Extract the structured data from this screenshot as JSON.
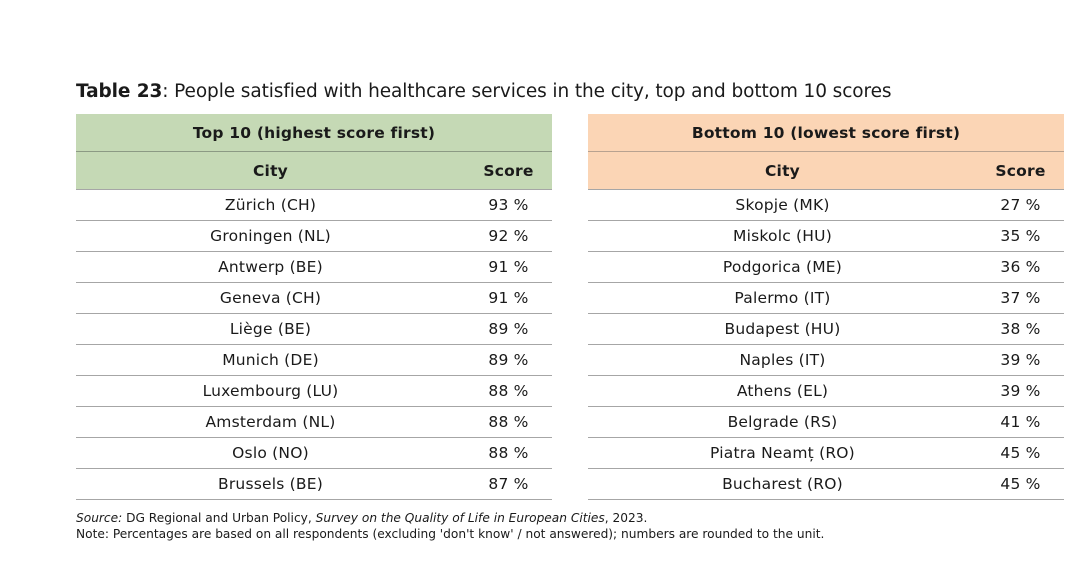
{
  "caption": {
    "label": "Table 23",
    "text": ": People satisfied with healthcare services in the city, top and bottom 10 scores"
  },
  "colors": {
    "top_header": "#c5d9b5",
    "bottom_header": "#fbd5b5"
  },
  "top": {
    "title": "Top 10 (highest score first)",
    "col_city": "City",
    "col_score": "Score",
    "rows": [
      {
        "city": "Zürich (CH)",
        "score": "93 %"
      },
      {
        "city": "Groningen (NL)",
        "score": "92 %"
      },
      {
        "city": "Antwerp (BE)",
        "score": "91 %"
      },
      {
        "city": "Geneva (CH)",
        "score": "91 %"
      },
      {
        "city": "Liège (BE)",
        "score": "89 %"
      },
      {
        "city": "Munich (DE)",
        "score": "89 %"
      },
      {
        "city": "Luxembourg (LU)",
        "score": "88 %"
      },
      {
        "city": "Amsterdam (NL)",
        "score": "88 %"
      },
      {
        "city": "Oslo (NO)",
        "score": "88 %"
      },
      {
        "city": "Brussels (BE)",
        "score": "87 %"
      }
    ]
  },
  "bottom": {
    "title": "Bottom 10 (lowest score first)",
    "col_city": "City",
    "col_score": "Score",
    "rows": [
      {
        "city": "Skopje (MK)",
        "score": "27 %"
      },
      {
        "city": "Miskolc (HU)",
        "score": "35 %"
      },
      {
        "city": "Podgorica (ME)",
        "score": "36 %"
      },
      {
        "city": "Palermo (IT)",
        "score": "37 %"
      },
      {
        "city": "Budapest (HU)",
        "score": "38 %"
      },
      {
        "city": "Naples (IT)",
        "score": "39 %"
      },
      {
        "city": "Athens (EL)",
        "score": "39 %"
      },
      {
        "city": "Belgrade (RS)",
        "score": "41 %"
      },
      {
        "city": "Piatra Neamț (RO)",
        "score": "45 %"
      },
      {
        "city": "Bucharest (RO)",
        "score": "45 %"
      }
    ]
  },
  "source": {
    "label": "Source:",
    "text1": " DG Regional and Urban Policy, ",
    "title": "Survey on the Quality of Life in European Cities",
    "text2": ", 2023."
  },
  "note": "Note: Percentages are based on all respondents (excluding 'don't know' / not answered); numbers are rounded to the unit."
}
